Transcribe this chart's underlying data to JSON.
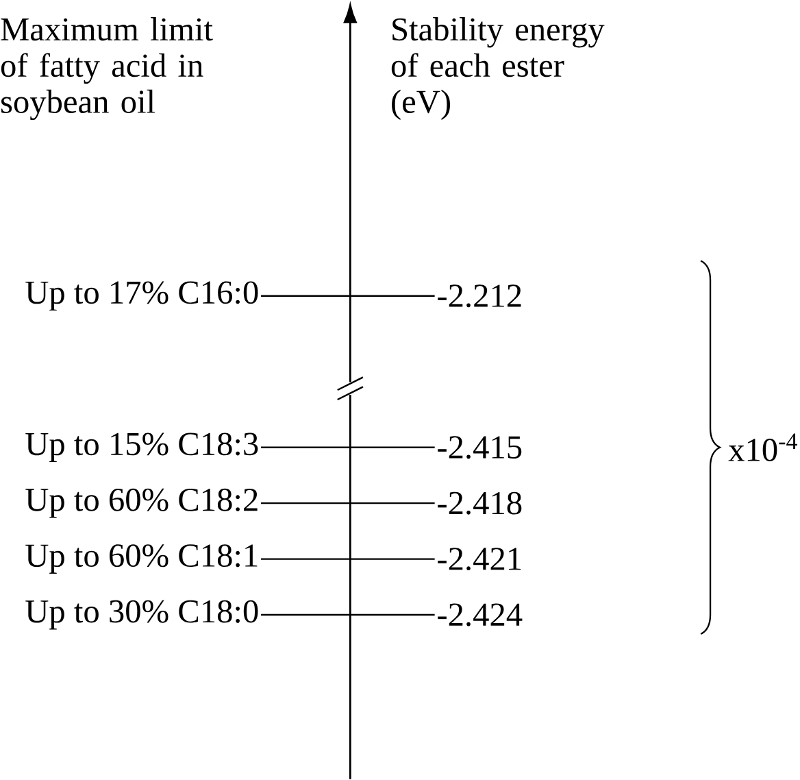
{
  "chart_data": {
    "type": "other",
    "categories": [
      "Up to 17% C16:0",
      "Up to 15% C18:3",
      "Up to 60% C18:2",
      "Up to 60% C18:1",
      "Up to 30% C18:0"
    ],
    "values": [
      -2.212,
      -2.415,
      -2.418,
      -2.421,
      -2.424
    ],
    "data_labels": true,
    "annotations": [
      "Maximum limit of fatty acid in soybean oil",
      "Stability energy of each ester (eV)",
      "x10$^{-4}$"
    ]
  }
}
